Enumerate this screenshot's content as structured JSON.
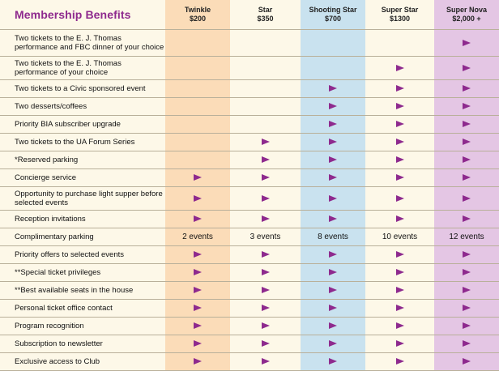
{
  "title": "Membership Benefits",
  "tiers": [
    {
      "name": "Twinkle",
      "price": "$200"
    },
    {
      "name": "Star",
      "price": "$350"
    },
    {
      "name": "Shooting Star",
      "price": "$700"
    },
    {
      "name": "Super Star",
      "price": "$1300"
    },
    {
      "name": "Super Nova",
      "price": "$2,000 +"
    }
  ],
  "marker_icon": "triangle-right-icon",
  "marker_color": "#8e2a8e",
  "rows": [
    {
      "label": "Two tickets to the E. J. Thomas performance and FBC dinner of your choice",
      "size": "tall3",
      "cells": [
        "",
        "",
        "",
        "",
        "check"
      ]
    },
    {
      "label": "Two tickets to the E. J. Thomas performance of your choice",
      "size": "tall",
      "cells": [
        "",
        "",
        "",
        "check",
        "check"
      ]
    },
    {
      "label": "Two tickets to a Civic sponsored event",
      "size": "",
      "cells": [
        "",
        "",
        "check",
        "check",
        "check"
      ]
    },
    {
      "label": "Two desserts/coffees",
      "size": "",
      "cells": [
        "",
        "",
        "check",
        "check",
        "check"
      ]
    },
    {
      "label": "Priority BIA subscriber upgrade",
      "size": "",
      "cells": [
        "",
        "",
        "check",
        "check",
        "check"
      ]
    },
    {
      "label": "Two tickets to the UA Forum Series",
      "size": "",
      "cells": [
        "",
        "check",
        "check",
        "check",
        "check"
      ]
    },
    {
      "label": "*Reserved parking",
      "size": "",
      "cells": [
        "",
        "check",
        "check",
        "check",
        "check"
      ]
    },
    {
      "label": "Concierge service",
      "size": "",
      "cells": [
        "check",
        "check",
        "check",
        "check",
        "check"
      ]
    },
    {
      "label": "Opportunity to purchase light supper before selected events",
      "size": "tall2",
      "cells": [
        "check",
        "check",
        "check",
        "check",
        "check"
      ]
    },
    {
      "label": "Reception invitations",
      "size": "",
      "cells": [
        "check",
        "check",
        "check",
        "check",
        "check"
      ]
    },
    {
      "label": "Complimentary parking",
      "size": "",
      "cells": [
        "2 events",
        "3 events",
        "8 events",
        "10 events",
        "12 events"
      ]
    },
    {
      "label": "Priority offers to selected events",
      "size": "",
      "cells": [
        "check",
        "check",
        "check",
        "check",
        "check"
      ]
    },
    {
      "label": "**Special ticket privileges",
      "size": "",
      "cells": [
        "check",
        "check",
        "check",
        "check",
        "check"
      ]
    },
    {
      "label": "**Best available seats in the house",
      "size": "",
      "cells": [
        "check",
        "check",
        "check",
        "check",
        "check"
      ]
    },
    {
      "label": "Personal ticket office contact",
      "size": "",
      "cells": [
        "check",
        "check",
        "check",
        "check",
        "check"
      ]
    },
    {
      "label": "Program recognition",
      "size": "",
      "cells": [
        "check",
        "check",
        "check",
        "check",
        "check"
      ]
    },
    {
      "label": "Subscription to newsletter",
      "size": "",
      "cells": [
        "check",
        "check",
        "check",
        "check",
        "check"
      ]
    },
    {
      "label": "Exclusive access to Club",
      "size": "",
      "cells": [
        "check",
        "check",
        "check",
        "check",
        "check"
      ]
    }
  ]
}
